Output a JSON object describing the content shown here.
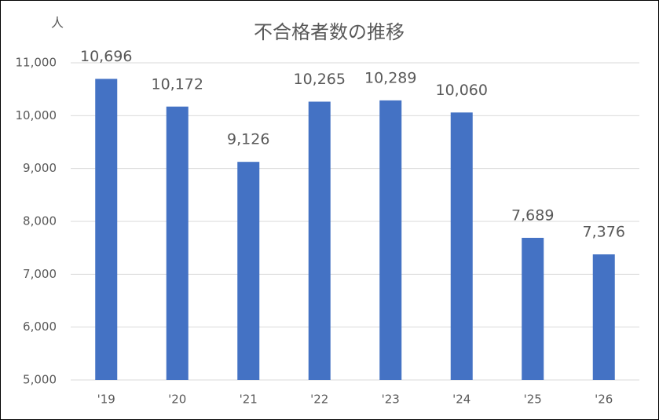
{
  "chart_data": {
    "type": "bar",
    "title": "不合格者数の推移",
    "y_unit_label": "人",
    "categories": [
      "'19",
      "'20",
      "'21",
      "'22",
      "'23",
      "'24",
      "'25",
      "'26"
    ],
    "values": [
      10696,
      10172,
      9126,
      10265,
      10289,
      10060,
      7689,
      7376
    ],
    "value_labels": [
      "10,696",
      "10,172",
      "9,126",
      "10,265",
      "10,289",
      "10,060",
      "7,689",
      "7,376"
    ],
    "color": "#4472c4",
    "ylim": [
      5000,
      11000
    ],
    "yticks": [
      {
        "value": 5000,
        "label": "5,000"
      },
      {
        "value": 6000,
        "label": "6,000"
      },
      {
        "value": 7000,
        "label": "7,000"
      },
      {
        "value": 8000,
        "label": "8,000"
      },
      {
        "value": 9000,
        "label": "9,000"
      },
      {
        "value": 10000,
        "label": "10,000"
      },
      {
        "value": 11000,
        "label": "11,000"
      }
    ],
    "grid": true
  }
}
